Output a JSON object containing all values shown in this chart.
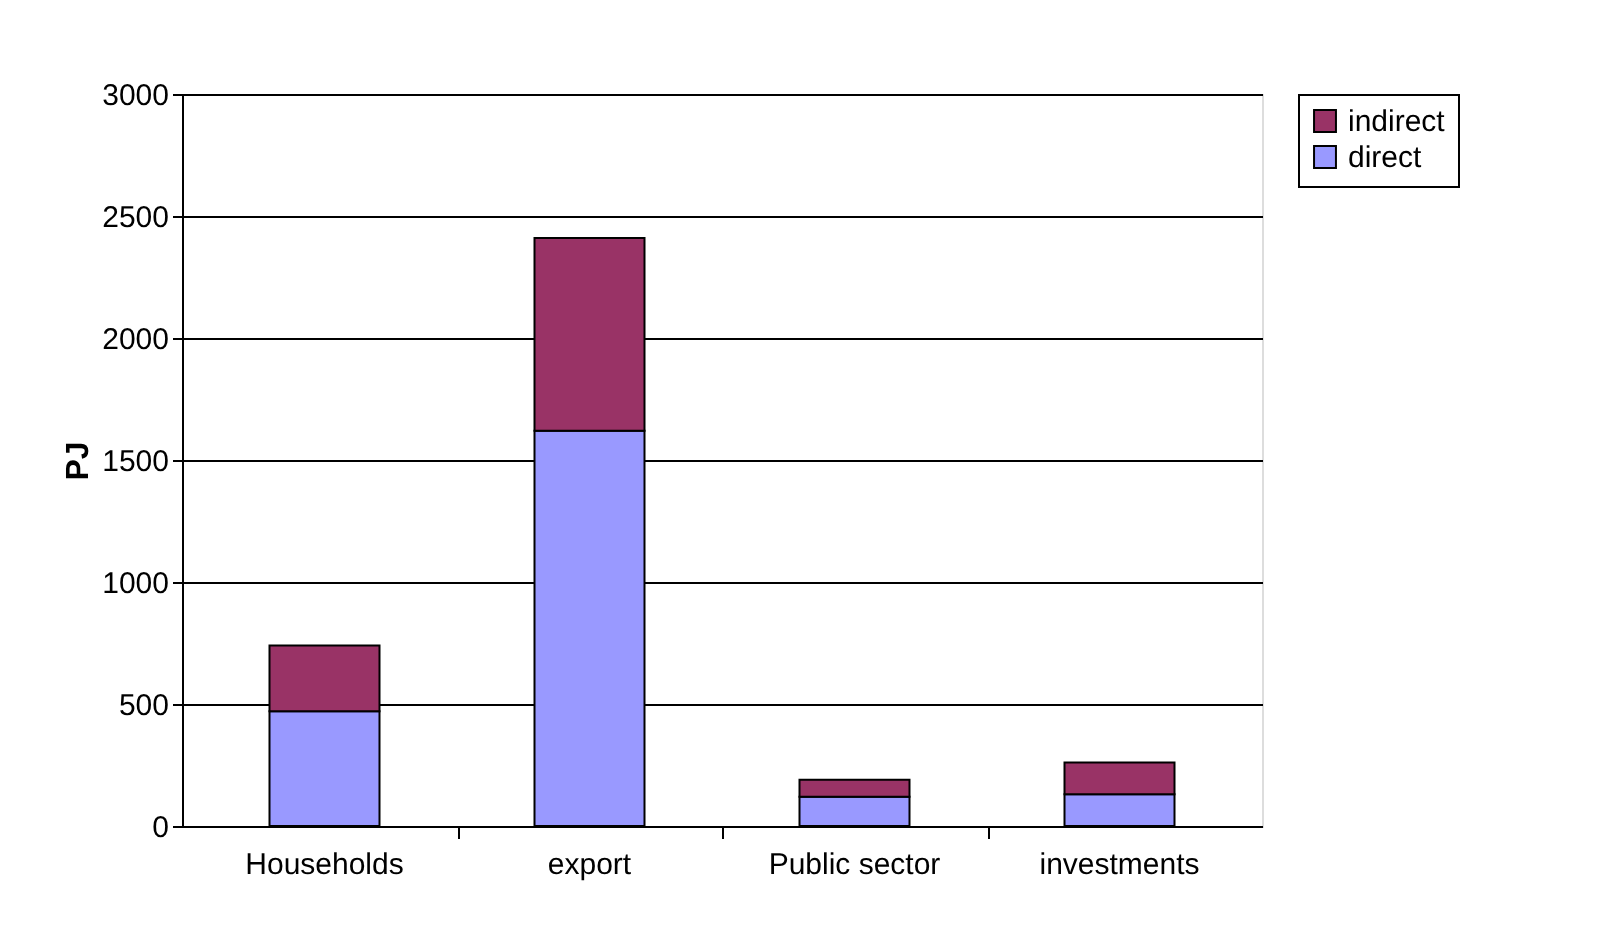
{
  "chart_data": {
    "type": "bar",
    "stacked": true,
    "ylabel": "PJ",
    "categories": [
      "Households",
      "export",
      "Public sector",
      "investments"
    ],
    "series": [
      {
        "name": "direct",
        "color": "#9999ff",
        "values": [
          470,
          1620,
          120,
          130
        ]
      },
      {
        "name": "indirect",
        "color": "#993366",
        "values": [
          270,
          790,
          70,
          130
        ]
      }
    ],
    "ylim": [
      0,
      3000
    ],
    "yticks": [
      0,
      500,
      1000,
      1500,
      2000,
      2500,
      3000
    ],
    "grid": "y",
    "legend": "right"
  }
}
